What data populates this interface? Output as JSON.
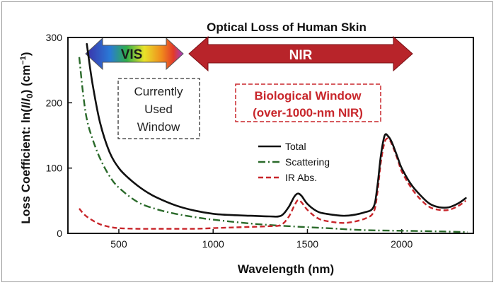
{
  "chart_data": {
    "type": "line",
    "title": "Optical Loss of Human Skin",
    "xlabel": "Wavelength (nm)",
    "ylabel_prefix": "Loss Coefficient: ln(",
    "ylabel_italic_1": "I",
    "ylabel_slash": "/",
    "ylabel_italic_2": "I",
    "ylabel_sub": "0",
    "ylabel_suffix": ") (cm",
    "ylabel_sup": "−1",
    "ylabel_close": ")",
    "xlim": [
      230,
      2380
    ],
    "ylim": [
      0,
      300
    ],
    "xticks": [
      500,
      1000,
      1500,
      2000
    ],
    "yticks": [
      0,
      100,
      200,
      300
    ],
    "grid": false,
    "legend_position": "center-right",
    "series": [
      {
        "name": "Total",
        "color": "#111111",
        "style": "solid",
        "x": [
          330,
          360,
          400,
          450,
          500,
          550,
          600,
          650,
          700,
          800,
          900,
          1000,
          1100,
          1200,
          1300,
          1360,
          1400,
          1430,
          1450,
          1470,
          1500,
          1550,
          1600,
          1700,
          1800,
          1850,
          1870,
          1890,
          1910,
          1930,
          1950,
          1980,
          2000,
          2050,
          2100,
          2150,
          2200,
          2250,
          2300,
          2340
        ],
        "y": [
          290,
          230,
          170,
          125,
          100,
          85,
          73,
          63,
          55,
          43,
          35,
          30,
          28,
          27,
          26,
          27,
          40,
          56,
          61,
          57,
          45,
          34,
          30,
          27,
          32,
          40,
          70,
          120,
          150,
          148,
          138,
          115,
          100,
          75,
          58,
          45,
          40,
          40,
          46,
          54
        ]
      },
      {
        "name": "Scattering",
        "color": "#2a6a2a",
        "style": "dashdot",
        "x": [
          290,
          310,
          330,
          360,
          400,
          450,
          500,
          600,
          700,
          800,
          900,
          1000,
          1200,
          1400,
          1600,
          1800,
          2000,
          2200,
          2350
        ],
        "y": [
          270,
          215,
          175,
          145,
          115,
          88,
          70,
          48,
          37,
          30,
          25,
          21,
          15,
          11,
          8,
          5,
          4,
          3,
          2
        ]
      },
      {
        "name": "IR Abs.",
        "color": "#c8262b",
        "style": "dashed",
        "x": [
          290,
          320,
          360,
          400,
          450,
          500,
          600,
          700,
          800,
          900,
          1000,
          1100,
          1200,
          1300,
          1360,
          1400,
          1430,
          1450,
          1470,
          1500,
          1550,
          1600,
          1700,
          1800,
          1850,
          1870,
          1890,
          1910,
          1930,
          1950,
          1980,
          2000,
          2050,
          2100,
          2150,
          2200,
          2250,
          2300,
          2340
        ],
        "y": [
          38,
          28,
          20,
          14,
          10,
          8,
          7,
          7,
          7,
          7,
          8,
          9,
          10,
          11,
          13,
          25,
          42,
          51,
          47,
          36,
          24,
          19,
          16,
          22,
          32,
          60,
          110,
          140,
          145,
          135,
          112,
          95,
          70,
          52,
          40,
          36,
          36,
          42,
          50
        ]
      }
    ],
    "annotations": {
      "vis_label": "VIS",
      "nir_label": "NIR",
      "currently_used_window": [
        "Currently",
        "Used",
        "Window"
      ],
      "biological_window": [
        "Biological Window",
        "(over-1000-nm NIR)"
      ]
    }
  }
}
